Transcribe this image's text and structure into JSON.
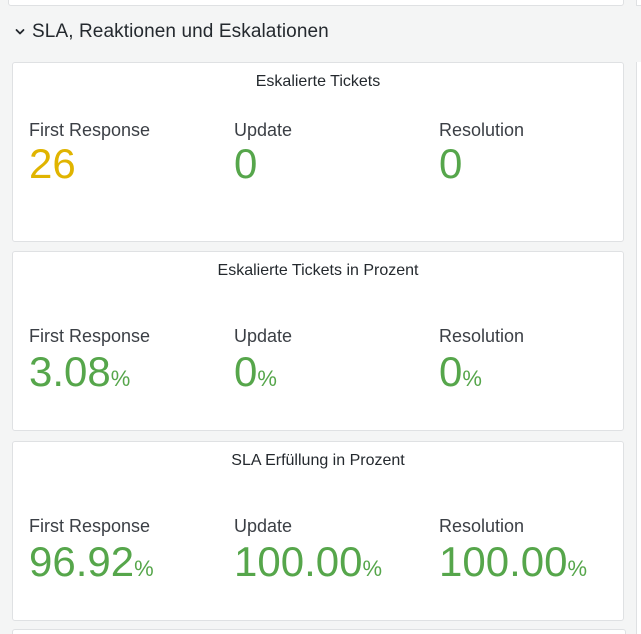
{
  "row": {
    "title": "SLA, Reaktionen und Eskalationen",
    "chevron_icon": "chevron-down-icon"
  },
  "colors": {
    "green": "#56a64b",
    "yellow": "#e0b400"
  },
  "panels": [
    {
      "title": "Eskalierte Tickets",
      "stats": [
        {
          "label": "First Response",
          "value": "26",
          "unit": "",
          "color": "yellow"
        },
        {
          "label": "Update",
          "value": "0",
          "unit": "",
          "color": "green"
        },
        {
          "label": "Resolution",
          "value": "0",
          "unit": "",
          "color": "green"
        }
      ]
    },
    {
      "title": "Eskalierte Tickets in Prozent",
      "stats": [
        {
          "label": "First Response",
          "value": "3.08",
          "unit": "%",
          "color": "green"
        },
        {
          "label": "Update",
          "value": "0",
          "unit": "%",
          "color": "green"
        },
        {
          "label": "Resolution",
          "value": "0",
          "unit": "%",
          "color": "green"
        }
      ]
    },
    {
      "title": "SLA Erfüllung in Prozent",
      "stats": [
        {
          "label": "First Response",
          "value": "96.92",
          "unit": "%",
          "color": "green"
        },
        {
          "label": "Update",
          "value": "100.00",
          "unit": "%",
          "color": "green"
        },
        {
          "label": "Resolution",
          "value": "100.00",
          "unit": "%",
          "color": "green"
        }
      ]
    }
  ]
}
